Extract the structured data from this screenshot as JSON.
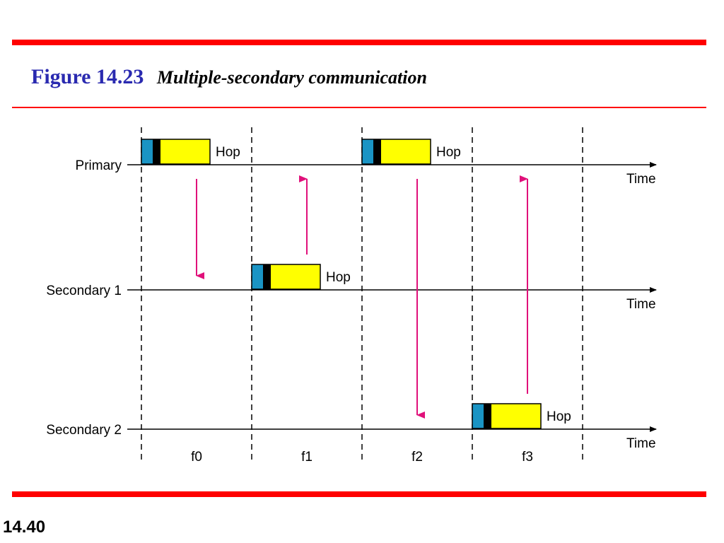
{
  "header": {
    "figure_number": "Figure 14.23",
    "caption": "Multiple-secondary communication"
  },
  "footer": {
    "page_number": "14.40"
  },
  "diagram": {
    "stations": [
      {
        "label": "Primary",
        "time_label": "Time"
      },
      {
        "label": "Secondary 1",
        "time_label": "Time"
      },
      {
        "label": "Secondary 2",
        "time_label": "Time"
      }
    ],
    "frequencies": [
      "f0",
      "f1",
      "f2",
      "f3"
    ],
    "packets": [
      {
        "station": "Primary",
        "slot": "f0",
        "label": "Hop"
      },
      {
        "station": "Secondary 1",
        "slot": "f1",
        "label": "Hop"
      },
      {
        "station": "Primary",
        "slot": "f2",
        "label": "Hop"
      },
      {
        "station": "Secondary 2",
        "slot": "f3",
        "label": "Hop"
      }
    ],
    "transfers": [
      {
        "slot": "f0",
        "from": "Primary",
        "to": "Secondary 1"
      },
      {
        "slot": "f1",
        "from": "Secondary 1",
        "to": "Primary"
      },
      {
        "slot": "f2",
        "from": "Primary",
        "to": "Secondary 2"
      },
      {
        "slot": "f3",
        "from": "Secondary 2",
        "to": "Primary"
      }
    ],
    "colors": {
      "packet_access": "#1a94c4",
      "packet_header": "#000000",
      "packet_payload": "#ffff00",
      "arrow": "#e0107a",
      "rule": "#ff0000",
      "title": "#2a2ab0"
    }
  }
}
